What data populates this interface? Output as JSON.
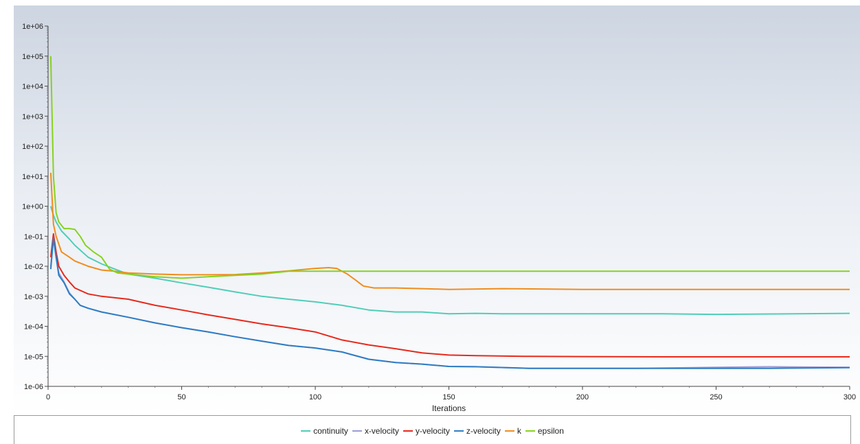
{
  "chart_data": {
    "type": "line",
    "xlabel": "Iterations",
    "ylabel": "",
    "xlim": [
      0,
      300
    ],
    "ylim": [
      1e-06,
      1000000.0
    ],
    "yscale": "log",
    "grid": false,
    "legend_position": "bottom",
    "x_ticks": [
      "0",
      "50",
      "100",
      "150",
      "200",
      "250",
      "300"
    ],
    "y_ticks": [
      "1e+06",
      "1e+05",
      "1e+04",
      "1e+03",
      "1e+02",
      "1e+01",
      "1e+00",
      "1e-01",
      "1e-02",
      "1e-03",
      "1e-04",
      "1e-05",
      "1e-06"
    ],
    "series": [
      {
        "name": "continuity",
        "color": "#4fcdb8",
        "points": [
          [
            1,
            1
          ],
          [
            2,
            0.5
          ],
          [
            3,
            0.3
          ],
          [
            5,
            0.15
          ],
          [
            8,
            0.08
          ],
          [
            10,
            0.05
          ],
          [
            15,
            0.02
          ],
          [
            20,
            0.012
          ],
          [
            25,
            0.008
          ],
          [
            30,
            0.0055
          ],
          [
            40,
            0.004
          ],
          [
            50,
            0.0028
          ],
          [
            60,
            0.002
          ],
          [
            70,
            0.0014
          ],
          [
            80,
            0.001
          ],
          [
            90,
            0.0008
          ],
          [
            100,
            0.00065
          ],
          [
            110,
            0.0005
          ],
          [
            120,
            0.00035
          ],
          [
            130,
            0.0003
          ],
          [
            140,
            0.0003
          ],
          [
            150,
            0.00026
          ],
          [
            160,
            0.00027
          ],
          [
            170,
            0.00026
          ],
          [
            200,
            0.00026
          ],
          [
            230,
            0.00026
          ],
          [
            250,
            0.00025
          ],
          [
            280,
            0.00026
          ],
          [
            300,
            0.00027
          ]
        ]
      },
      {
        "name": "x-velocity",
        "color": "#9b9bd6",
        "points": [
          [
            1,
            0.01
          ],
          [
            2,
            0.08
          ],
          [
            3,
            0.02
          ],
          [
            4,
            0.006
          ],
          [
            6,
            0.003
          ],
          [
            8,
            0.0013
          ],
          [
            10,
            0.0008
          ],
          [
            12,
            0.0005
          ],
          [
            15,
            0.0004
          ],
          [
            20,
            0.0003
          ],
          [
            30,
            0.0002
          ],
          [
            40,
            0.00013
          ],
          [
            50,
            9e-05
          ],
          [
            60,
            6.5e-05
          ],
          [
            70,
            4.5e-05
          ],
          [
            80,
            3.2e-05
          ],
          [
            90,
            2.3e-05
          ],
          [
            100,
            1.9e-05
          ],
          [
            110,
            1.4e-05
          ],
          [
            120,
            8e-06
          ],
          [
            130,
            6.2e-06
          ],
          [
            140,
            5.5e-06
          ],
          [
            150,
            4.6e-06
          ],
          [
            160,
            4.5e-06
          ],
          [
            180,
            4e-06
          ],
          [
            200,
            4e-06
          ],
          [
            220,
            4e-06
          ],
          [
            250,
            4.3e-06
          ],
          [
            270,
            4.5e-06
          ],
          [
            300,
            4.3e-06
          ]
        ]
      },
      {
        "name": "y-velocity",
        "color": "#e8281c",
        "points": [
          [
            1,
            0.02
          ],
          [
            2,
            0.12
          ],
          [
            3,
            0.03
          ],
          [
            4,
            0.01
          ],
          [
            6,
            0.005
          ],
          [
            8,
            0.003
          ],
          [
            10,
            0.0019
          ],
          [
            15,
            0.0012
          ],
          [
            20,
            0.001
          ],
          [
            30,
            0.0008
          ],
          [
            40,
            0.0005
          ],
          [
            50,
            0.00035
          ],
          [
            60,
            0.00024
          ],
          [
            70,
            0.00017
          ],
          [
            80,
            0.00012
          ],
          [
            90,
            9e-05
          ],
          [
            100,
            6.5e-05
          ],
          [
            110,
            3.5e-05
          ],
          [
            120,
            2.4e-05
          ],
          [
            130,
            1.8e-05
          ],
          [
            140,
            1.3e-05
          ],
          [
            150,
            1.1e-05
          ],
          [
            160,
            1.05e-05
          ],
          [
            180,
            1e-05
          ],
          [
            200,
            9.8e-06
          ],
          [
            230,
            9.6e-06
          ],
          [
            260,
            9.6e-06
          ],
          [
            300,
            9.6e-06
          ]
        ]
      },
      {
        "name": "z-velocity",
        "color": "#2f7dc4",
        "points": [
          [
            1,
            0.008
          ],
          [
            2,
            0.09
          ],
          [
            3,
            0.02
          ],
          [
            4,
            0.005
          ],
          [
            6,
            0.0028
          ],
          [
            8,
            0.0012
          ],
          [
            10,
            0.0008
          ],
          [
            12,
            0.0005
          ],
          [
            15,
            0.0004
          ],
          [
            20,
            0.0003
          ],
          [
            30,
            0.0002
          ],
          [
            40,
            0.00013
          ],
          [
            50,
            9e-05
          ],
          [
            60,
            6.5e-05
          ],
          [
            70,
            4.5e-05
          ],
          [
            80,
            3.2e-05
          ],
          [
            90,
            2.3e-05
          ],
          [
            100,
            1.9e-05
          ],
          [
            110,
            1.4e-05
          ],
          [
            120,
            8e-06
          ],
          [
            130,
            6.2e-06
          ],
          [
            140,
            5.5e-06
          ],
          [
            150,
            4.6e-06
          ],
          [
            160,
            4.5e-06
          ],
          [
            180,
            4e-06
          ],
          [
            200,
            4e-06
          ],
          [
            220,
            4e-06
          ],
          [
            250,
            4e-06
          ],
          [
            270,
            4e-06
          ],
          [
            300,
            4.2e-06
          ]
        ]
      },
      {
        "name": "k",
        "color": "#f08c1e",
        "points": [
          [
            1,
            13
          ],
          [
            2,
            0.25
          ],
          [
            3,
            0.1
          ],
          [
            5,
            0.03
          ],
          [
            8,
            0.02
          ],
          [
            10,
            0.015
          ],
          [
            15,
            0.01
          ],
          [
            20,
            0.0075
          ],
          [
            25,
            0.0068
          ],
          [
            30,
            0.006
          ],
          [
            40,
            0.0055
          ],
          [
            50,
            0.0052
          ],
          [
            60,
            0.0052
          ],
          [
            70,
            0.0053
          ],
          [
            80,
            0.006
          ],
          [
            90,
            0.007
          ],
          [
            100,
            0.0085
          ],
          [
            105,
            0.009
          ],
          [
            108,
            0.0085
          ],
          [
            112,
            0.0055
          ],
          [
            115,
            0.0035
          ],
          [
            118,
            0.0022
          ],
          [
            122,
            0.0019
          ],
          [
            130,
            0.0019
          ],
          [
            140,
            0.0018
          ],
          [
            150,
            0.0017
          ],
          [
            170,
            0.0018
          ],
          [
            200,
            0.0017
          ],
          [
            230,
            0.0017
          ],
          [
            260,
            0.0017
          ],
          [
            300,
            0.0017
          ]
        ]
      },
      {
        "name": "epsilon",
        "color": "#86d21e",
        "points": [
          [
            1,
            100000
          ],
          [
            2,
            10
          ],
          [
            3,
            0.6
          ],
          [
            4,
            0.3
          ],
          [
            6,
            0.18
          ],
          [
            8,
            0.18
          ],
          [
            10,
            0.17
          ],
          [
            12,
            0.1
          ],
          [
            14,
            0.05
          ],
          [
            17,
            0.03
          ],
          [
            20,
            0.02
          ],
          [
            23,
            0.008
          ],
          [
            26,
            0.006
          ],
          [
            30,
            0.0055
          ],
          [
            40,
            0.0045
          ],
          [
            50,
            0.004
          ],
          [
            60,
            0.0045
          ],
          [
            70,
            0.005
          ],
          [
            80,
            0.0055
          ],
          [
            90,
            0.0068
          ],
          [
            100,
            0.0068
          ],
          [
            110,
            0.0068
          ],
          [
            120,
            0.0068
          ],
          [
            150,
            0.0068
          ],
          [
            200,
            0.0068
          ],
          [
            250,
            0.0068
          ],
          [
            300,
            0.0068
          ]
        ]
      }
    ]
  }
}
